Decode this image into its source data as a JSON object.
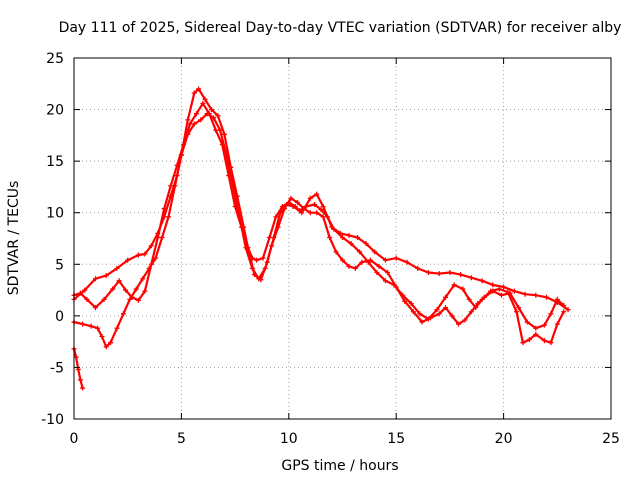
{
  "chart_data": {
    "type": "scatter",
    "title": "Day 111 of 2025, Sidereal Day-to-day VTEC variation (SDTVAR) for receiver alby",
    "xlabel": "GPS time / hours",
    "ylabel": "SDTVAR / TECUs",
    "xlim": [
      0,
      25
    ],
    "ylim": [
      -10,
      25
    ],
    "xticks": [
      0,
      5,
      10,
      15,
      20,
      25
    ],
    "yticks": [
      -10,
      -5,
      0,
      5,
      10,
      15,
      20,
      25
    ],
    "grid": true,
    "marker": "+",
    "color": "#ff0000",
    "series": [
      {
        "name": "track-1",
        "points": [
          [
            0.0,
            1.6
          ],
          [
            0.5,
            2.5
          ],
          [
            1.0,
            3.6
          ],
          [
            1.5,
            3.9
          ],
          [
            2.0,
            4.6
          ],
          [
            2.5,
            5.4
          ],
          [
            3.0,
            5.9
          ],
          [
            3.3,
            6.0
          ],
          [
            3.6,
            6.8
          ],
          [
            3.9,
            8.0
          ],
          [
            4.2,
            9.6
          ],
          [
            4.5,
            11.6
          ],
          [
            4.8,
            13.6
          ],
          [
            5.0,
            15.6
          ],
          [
            5.3,
            19.0
          ],
          [
            5.6,
            21.6
          ],
          [
            5.8,
            22.0
          ],
          [
            6.1,
            21.0
          ],
          [
            6.4,
            20.0
          ],
          [
            6.7,
            19.4
          ],
          [
            7.0,
            17.6
          ],
          [
            7.3,
            14.4
          ],
          [
            7.6,
            11.6
          ],
          [
            7.9,
            8.6
          ],
          [
            8.1,
            6.6
          ],
          [
            8.3,
            5.6
          ],
          [
            8.5,
            5.4
          ],
          [
            8.8,
            5.6
          ],
          [
            9.1,
            7.6
          ],
          [
            9.4,
            9.6
          ],
          [
            9.7,
            10.6
          ],
          [
            10.0,
            11.0
          ],
          [
            10.3,
            10.6
          ],
          [
            10.6,
            10.0
          ],
          [
            11.0,
            11.4
          ],
          [
            11.3,
            11.8
          ],
          [
            11.6,
            10.6
          ],
          [
            12.0,
            8.6
          ],
          [
            12.4,
            8.0
          ],
          [
            12.8,
            7.8
          ],
          [
            13.2,
            7.6
          ],
          [
            13.6,
            7.0
          ],
          [
            14.0,
            6.2
          ],
          [
            14.5,
            5.4
          ],
          [
            15.0,
            5.6
          ],
          [
            15.5,
            5.2
          ],
          [
            16.0,
            4.6
          ],
          [
            16.5,
            4.2
          ],
          [
            17.0,
            4.1
          ],
          [
            17.5,
            4.2
          ],
          [
            18.0,
            4.0
          ],
          [
            18.5,
            3.7
          ],
          [
            19.0,
            3.4
          ],
          [
            19.5,
            3.0
          ],
          [
            20.0,
            2.8
          ],
          [
            20.5,
            2.4
          ],
          [
            21.0,
            2.1
          ],
          [
            21.5,
            2.0
          ],
          [
            22.0,
            1.8
          ],
          [
            22.5,
            1.3
          ],
          [
            23.0,
            0.6
          ]
        ]
      },
      {
        "name": "track-2",
        "points": [
          [
            0.0,
            2.0
          ],
          [
            0.3,
            2.2
          ],
          [
            0.6,
            1.6
          ],
          [
            1.0,
            0.8
          ],
          [
            1.4,
            1.6
          ],
          [
            1.8,
            2.6
          ],
          [
            2.1,
            3.4
          ],
          [
            2.4,
            2.5
          ],
          [
            2.7,
            1.8
          ],
          [
            3.0,
            1.5
          ],
          [
            3.3,
            2.4
          ],
          [
            3.6,
            5.0
          ],
          [
            3.9,
            7.6
          ],
          [
            4.2,
            10.4
          ],
          [
            4.5,
            12.6
          ],
          [
            4.8,
            14.6
          ],
          [
            5.1,
            16.6
          ],
          [
            5.4,
            18.6
          ],
          [
            5.7,
            19.6
          ],
          [
            6.0,
            20.6
          ],
          [
            6.3,
            19.6
          ],
          [
            6.6,
            18.0
          ],
          [
            6.9,
            16.6
          ],
          [
            7.2,
            13.6
          ],
          [
            7.5,
            10.6
          ],
          [
            7.8,
            8.6
          ],
          [
            8.1,
            6.6
          ],
          [
            8.4,
            4.0
          ],
          [
            8.7,
            3.5
          ],
          [
            9.0,
            5.2
          ],
          [
            9.3,
            7.6
          ],
          [
            9.6,
            10.0
          ],
          [
            9.9,
            10.8
          ],
          [
            10.2,
            10.6
          ],
          [
            10.5,
            10.2
          ],
          [
            10.8,
            10.6
          ],
          [
            11.2,
            10.8
          ],
          [
            11.5,
            10.3
          ],
          [
            11.8,
            9.6
          ],
          [
            12.1,
            8.4
          ],
          [
            12.5,
            7.6
          ],
          [
            12.9,
            7.0
          ],
          [
            13.3,
            6.2
          ],
          [
            13.7,
            5.2
          ],
          [
            14.1,
            4.2
          ],
          [
            14.5,
            3.4
          ],
          [
            14.9,
            3.0
          ],
          [
            15.3,
            2.0
          ],
          [
            15.7,
            1.2
          ],
          [
            16.1,
            0.2
          ],
          [
            16.5,
            -0.3
          ],
          [
            16.9,
            0.6
          ],
          [
            17.3,
            1.8
          ],
          [
            17.7,
            3.0
          ],
          [
            18.1,
            2.6
          ],
          [
            18.4,
            1.6
          ],
          [
            18.7,
            0.8
          ],
          [
            19.0,
            1.6
          ],
          [
            19.4,
            2.4
          ],
          [
            19.8,
            2.6
          ],
          [
            20.2,
            2.3
          ],
          [
            20.6,
            0.4
          ],
          [
            20.9,
            -2.6
          ],
          [
            21.2,
            -2.3
          ],
          [
            21.5,
            -1.8
          ],
          [
            21.9,
            -2.4
          ],
          [
            22.2,
            -2.6
          ],
          [
            22.5,
            -0.8
          ],
          [
            22.8,
            0.4
          ]
        ]
      },
      {
        "name": "track-3",
        "points": [
          [
            0.0,
            -0.6
          ],
          [
            0.4,
            -0.8
          ],
          [
            0.8,
            -1.0
          ],
          [
            1.1,
            -1.2
          ],
          [
            1.3,
            -2.0
          ],
          [
            1.5,
            -3.0
          ],
          [
            1.7,
            -2.6
          ],
          [
            2.0,
            -1.2
          ],
          [
            2.3,
            0.2
          ],
          [
            2.6,
            1.6
          ],
          [
            2.9,
            2.6
          ],
          [
            3.2,
            3.6
          ],
          [
            3.5,
            4.6
          ],
          [
            3.8,
            5.6
          ],
          [
            4.1,
            7.6
          ],
          [
            4.4,
            9.6
          ],
          [
            4.7,
            12.6
          ],
          [
            5.0,
            15.6
          ],
          [
            5.3,
            17.6
          ],
          [
            5.6,
            18.6
          ],
          [
            5.9,
            19.0
          ],
          [
            6.2,
            19.6
          ],
          [
            6.5,
            19.2
          ],
          [
            6.8,
            18.0
          ],
          [
            7.1,
            15.6
          ],
          [
            7.4,
            12.6
          ],
          [
            7.7,
            9.6
          ],
          [
            8.0,
            6.6
          ],
          [
            8.3,
            4.6
          ],
          [
            8.6,
            3.6
          ],
          [
            8.9,
            4.6
          ],
          [
            9.2,
            6.8
          ],
          [
            9.5,
            8.6
          ],
          [
            9.8,
            10.4
          ],
          [
            10.1,
            11.4
          ],
          [
            10.4,
            11.0
          ],
          [
            10.7,
            10.4
          ],
          [
            11.0,
            10.0
          ],
          [
            11.3,
            10.0
          ],
          [
            11.6,
            9.6
          ],
          [
            11.9,
            7.6
          ],
          [
            12.2,
            6.2
          ],
          [
            12.5,
            5.4
          ],
          [
            12.8,
            4.8
          ],
          [
            13.1,
            4.6
          ],
          [
            13.4,
            5.2
          ],
          [
            13.8,
            5.4
          ],
          [
            14.2,
            4.8
          ],
          [
            14.6,
            4.2
          ],
          [
            15.0,
            2.8
          ],
          [
            15.4,
            1.4
          ],
          [
            15.8,
            0.4
          ],
          [
            16.2,
            -0.6
          ],
          [
            16.6,
            -0.2
          ],
          [
            17.0,
            0.2
          ],
          [
            17.3,
            0.8
          ],
          [
            17.6,
            0.0
          ],
          [
            17.9,
            -0.8
          ],
          [
            18.2,
            -0.4
          ],
          [
            18.5,
            0.4
          ],
          [
            18.8,
            1.2
          ],
          [
            19.1,
            1.8
          ],
          [
            19.5,
            2.4
          ],
          [
            19.9,
            2.0
          ],
          [
            20.3,
            2.2
          ],
          [
            20.7,
            0.8
          ],
          [
            21.1,
            -0.6
          ],
          [
            21.5,
            -1.2
          ],
          [
            21.9,
            -0.9
          ],
          [
            22.2,
            0.2
          ],
          [
            22.5,
            1.6
          ],
          [
            22.8,
            1.0
          ]
        ]
      },
      {
        "name": "track-4",
        "points": [
          [
            0.0,
            -3.2
          ],
          [
            0.1,
            -4.0
          ],
          [
            0.2,
            -5.2
          ],
          [
            0.3,
            -6.2
          ],
          [
            0.4,
            -7.0
          ]
        ]
      }
    ]
  }
}
